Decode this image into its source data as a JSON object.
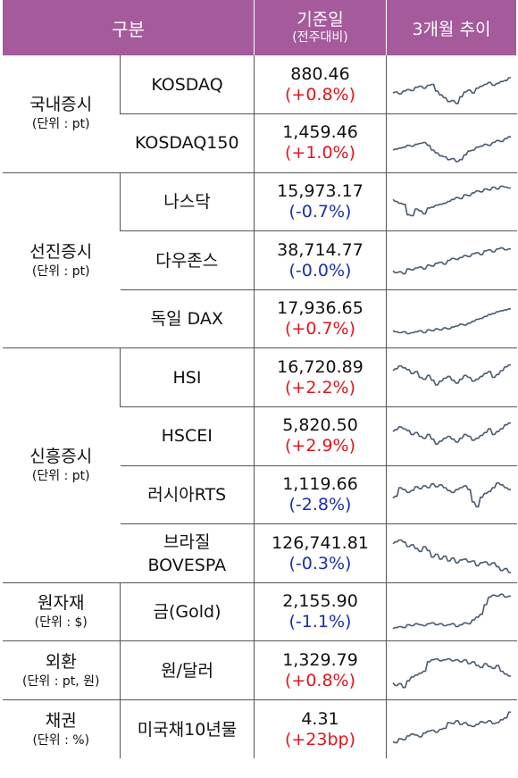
{
  "header": {
    "category": "구분",
    "base_date": "기준일",
    "base_date_sub": "(전주대비)",
    "trend": "3개월 추이"
  },
  "groups": [
    {
      "name": "국내증시",
      "unit": "(단위 : pt)"
    },
    {
      "name": "선진증시",
      "unit": "(단위 : pt)"
    },
    {
      "name": "신흥증시",
      "unit": "(단위 : pt)"
    },
    {
      "name": "원자재",
      "unit": "(단위 : $)"
    },
    {
      "name": "외환",
      "unit": "(단위 : pt, 원)"
    },
    {
      "name": "채권",
      "unit": "(단위 : %)"
    }
  ],
  "rows": [
    {
      "name": "KOSDAQ",
      "value": "880.46",
      "change": "(+0.8%)",
      "direction": "up",
      "trend": [
        62,
        60,
        64,
        58,
        55,
        57,
        50,
        48,
        52,
        46,
        44,
        58,
        66,
        72,
        80,
        78,
        84,
        70,
        60,
        56,
        62,
        52,
        48,
        44,
        40,
        46,
        42,
        38,
        36,
        30
      ]
    },
    {
      "name": "KOSDAQ150",
      "value": "1,459.46",
      "change": "(+1.0%)",
      "direction": "up",
      "trend": [
        60,
        58,
        56,
        54,
        50,
        52,
        48,
        46,
        44,
        50,
        60,
        66,
        72,
        74,
        80,
        78,
        84,
        80,
        70,
        62,
        60,
        54,
        52,
        48,
        50,
        44,
        40,
        42,
        36,
        32
      ]
    },
    {
      "name": "나스닥",
      "value": "15,973.17",
      "change": "(-0.7%)",
      "direction": "down",
      "trend": [
        40,
        44,
        48,
        50,
        72,
        74,
        60,
        64,
        70,
        58,
        56,
        52,
        50,
        48,
        44,
        40,
        36,
        38,
        30,
        32,
        26,
        22,
        24,
        18,
        20,
        14,
        18,
        12,
        14,
        16
      ]
    },
    {
      "name": "다우존스",
      "value": "38,714.77",
      "change": "(-0.0%)",
      "direction": "down",
      "trend": [
        66,
        70,
        68,
        72,
        62,
        64,
        60,
        58,
        62,
        54,
        56,
        50,
        48,
        52,
        44,
        40,
        42,
        38,
        34,
        36,
        30,
        28,
        32,
        24,
        22,
        26,
        20,
        18,
        22,
        20
      ]
    },
    {
      "name": "독일 DAX",
      "value": "17,936.65",
      "change": "(+0.7%)",
      "direction": "up",
      "trend": [
        70,
        72,
        74,
        72,
        76,
        74,
        72,
        70,
        74,
        68,
        70,
        66,
        68,
        64,
        66,
        62,
        60,
        56,
        58,
        54,
        50,
        46,
        44,
        40,
        36,
        34,
        30,
        28,
        26,
        24
      ]
    },
    {
      "name": "HSI",
      "value": "16,720.89",
      "change": "(+2.2%)",
      "direction": "up",
      "trend": [
        30,
        26,
        20,
        24,
        28,
        36,
        32,
        44,
        48,
        40,
        50,
        60,
        52,
        46,
        42,
        50,
        56,
        48,
        40,
        44,
        52,
        48,
        42,
        36,
        32,
        44,
        38,
        30,
        22,
        18
      ]
    },
    {
      "name": "HSCEI",
      "value": "5,820.50",
      "change": "(+2.9%)",
      "direction": "up",
      "trend": [
        36,
        32,
        26,
        30,
        34,
        42,
        38,
        46,
        50,
        42,
        52,
        62,
        56,
        50,
        46,
        52,
        58,
        50,
        42,
        46,
        54,
        50,
        44,
        38,
        30,
        42,
        36,
        30,
        22,
        18
      ]
    },
    {
      "name": "러시아RTS",
      "value": "1,119.66",
      "change": "(-2.8%)",
      "direction": "down",
      "trend": [
        52,
        48,
        30,
        34,
        40,
        36,
        28,
        32,
        26,
        30,
        22,
        28,
        24,
        30,
        36,
        40,
        34,
        30,
        26,
        34,
        60,
        70,
        50,
        42,
        38,
        30,
        20,
        24,
        30,
        34
      ]
    },
    {
      "name": "브라질 BOVESPA",
      "value": "126,741.81",
      "change": "(-0.3%)",
      "direction": "down",
      "trend": [
        24,
        20,
        16,
        20,
        30,
        26,
        34,
        40,
        30,
        38,
        52,
        46,
        56,
        50,
        60,
        54,
        64,
        58,
        56,
        62,
        60,
        70,
        64,
        62,
        68,
        64,
        72,
        80,
        76,
        84
      ]
    },
    {
      "name": "금(Gold)",
      "value": "2,155.90",
      "change": "(-1.1%)",
      "direction": "down",
      "trend": [
        80,
        78,
        76,
        78,
        72,
        74,
        70,
        72,
        74,
        70,
        68,
        72,
        70,
        74,
        72,
        70,
        76,
        72,
        68,
        70,
        62,
        56,
        50,
        30,
        14,
        10,
        12,
        8,
        14,
        12
      ]
    },
    {
      "name": "원/달러",
      "value": "1,329.79",
      "change": "(+0.8%)",
      "direction": "up",
      "trend": [
        70,
        76,
        72,
        80,
        66,
        58,
        54,
        50,
        46,
        26,
        22,
        20,
        24,
        22,
        20,
        24,
        22,
        26,
        22,
        30,
        26,
        34,
        38,
        30,
        36,
        40,
        34,
        46,
        52,
        56
      ]
    },
    {
      "name": "미국채10년물",
      "value": "4.31",
      "change": "(+23bp)",
      "direction": "up",
      "trend": [
        70,
        72,
        64,
        66,
        58,
        54,
        56,
        60,
        52,
        48,
        46,
        50,
        44,
        42,
        30,
        32,
        26,
        34,
        30,
        36,
        38,
        34,
        28,
        30,
        26,
        32,
        30,
        24,
        20,
        8
      ]
    }
  ],
  "colors": {
    "header_bg": "#a45a9b",
    "up": "#e0161e",
    "down": "#1b2fb0",
    "line": "#4a5a6e"
  }
}
